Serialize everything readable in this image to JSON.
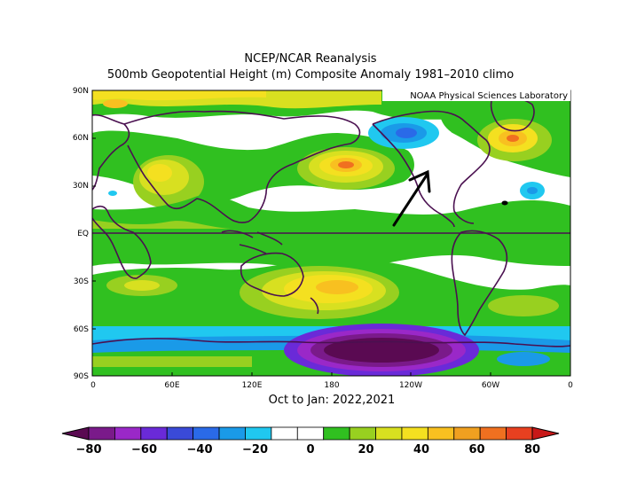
{
  "title_line1": "NCEP/NCAR Reanalysis",
  "title_line2": "500mb Geopotential Height (m) Composite Anomaly 1981–2010 climo",
  "watermark": "NOAA Physical Sciences Laboratory",
  "subtitle": "Oct to Jan: 2022,2021",
  "lat_labels": [
    "90N",
    "60N",
    "30N",
    "EQ",
    "30S",
    "60S",
    "90S"
  ],
  "lon_labels": [
    "0",
    "60E",
    "120E",
    "180",
    "120W",
    "60W",
    "0"
  ],
  "colorbar": {
    "labels": [
      "−80",
      "−60",
      "−40",
      "−20",
      "0",
      "20",
      "40",
      "60",
      "80"
    ],
    "colors": [
      "#5a0a52",
      "#7a1a8a",
      "#9a28c8",
      "#6a2ad8",
      "#3a4ad8",
      "#2a6ae8",
      "#1a9ae8",
      "#20c8f0",
      "#ffffff",
      "#ffffff",
      "#30c020",
      "#98d020",
      "#d8e020",
      "#f4e020",
      "#f8c020",
      "#f0a020",
      "#f07020",
      "#e84020",
      "#c81818"
    ]
  },
  "map": {
    "map_type": "global anomaly contour map",
    "annotation": "black arrow pointing toward western North America"
  }
}
